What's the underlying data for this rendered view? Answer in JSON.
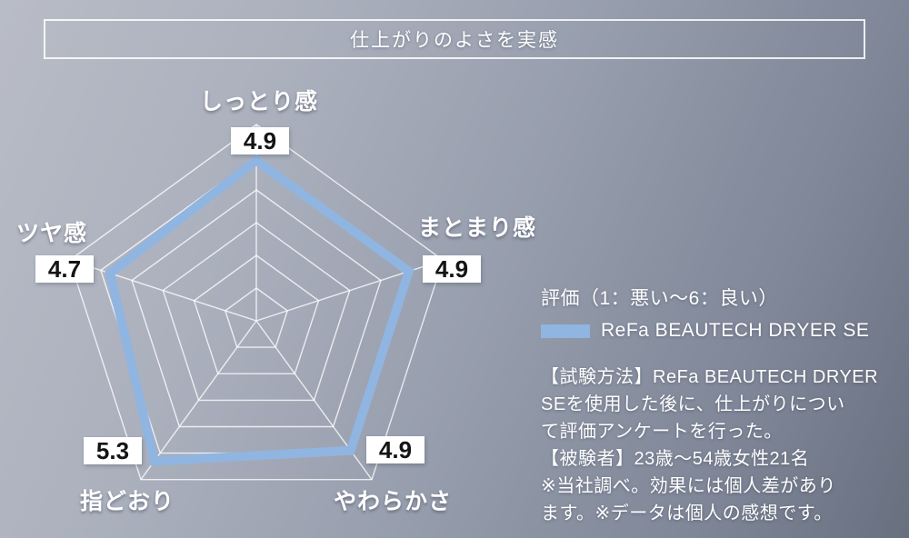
{
  "title": "仕上がりのよさを実感",
  "legend": {
    "scale_note": "評価（1：悪い～6：良い）",
    "series_label": "ReFa BEAUTECH DRYER SE",
    "swatch_color": "#90b5e0"
  },
  "notes": [
    "【試験方法】ReFa BEAUTECH DRYER",
    "SEを使用した後に、仕上がりについ",
    "て評価アンケートを行った。",
    "【被験者】23歳～54歳女性21名",
    "※当社調べ。効果には個人差があり",
    "ます。※データは個人の感想です。"
  ],
  "chart_data": {
    "type": "radar",
    "categories": [
      "しっとり感",
      "まとまり感",
      "やわらかさ",
      "指どおり",
      "ツヤ感"
    ],
    "series": [
      {
        "name": "ReFa BEAUTECH DRYER SE",
        "values": [
          4.9,
          4.9,
          4.9,
          5.3,
          4.7
        ]
      }
    ],
    "value_labels": [
      "4.9",
      "4.9",
      "4.9",
      "5.3",
      "4.7"
    ],
    "scale": {
      "min": 1,
      "max": 6,
      "rings": 6
    },
    "grid_color": "rgba(255,255,255,0.78)",
    "line_color": "#90b5e0",
    "legend_position": "right",
    "fill": false
  }
}
